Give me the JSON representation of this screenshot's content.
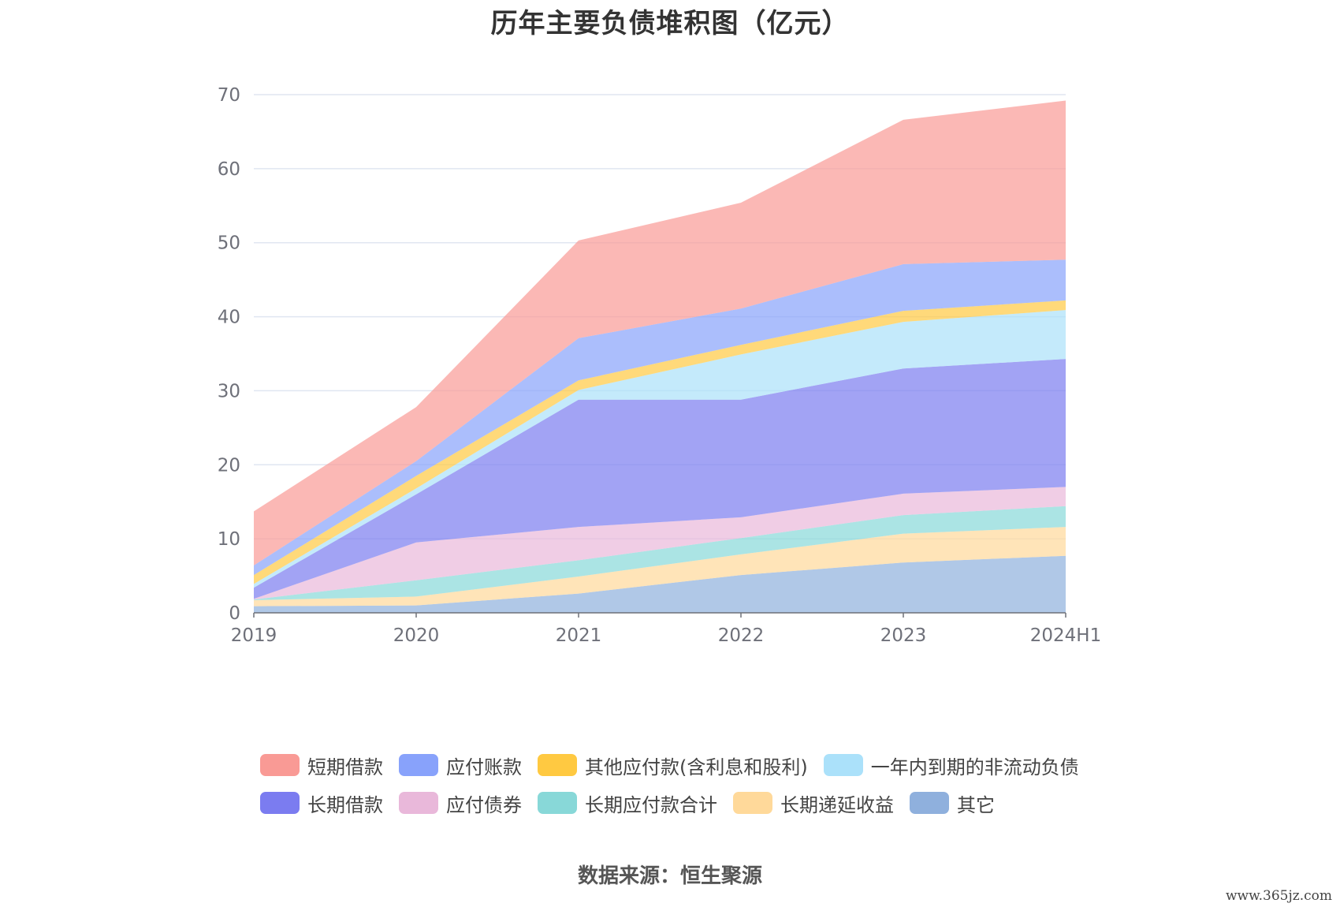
{
  "title": "历年主要负债堆积图（亿元）",
  "source": "数据来源：恒生聚源",
  "watermark": "www.365jz.com",
  "chart_data": {
    "type": "area",
    "stacked": true,
    "categories": [
      "2019",
      "2020",
      "2021",
      "2022",
      "2023",
      "2024H1"
    ],
    "ylim": [
      0,
      70
    ],
    "yticks": [
      0,
      10,
      20,
      30,
      40,
      50,
      60,
      70
    ],
    "grid": true,
    "legend_position": "bottom",
    "series": [
      {
        "name": "其它",
        "color": "#8fb0dd",
        "values": [
          0.9,
          1.0,
          2.6,
          5.1,
          6.8,
          7.7
        ]
      },
      {
        "name": "长期递延收益",
        "color": "#ffd99a",
        "values": [
          0.8,
          1.2,
          2.3,
          2.8,
          3.9,
          3.9
        ]
      },
      {
        "name": "长期应付款合计",
        "color": "#88d8d8",
        "values": [
          0.1,
          2.2,
          2.2,
          2.2,
          2.5,
          2.8
        ]
      },
      {
        "name": "应付债券",
        "color": "#e9b8da",
        "values": [
          0.1,
          5.1,
          4.5,
          2.8,
          2.9,
          2.6
        ]
      },
      {
        "name": "长期借款",
        "color": "#7b7cf0",
        "values": [
          1.5,
          6.5,
          17.2,
          15.9,
          16.9,
          17.3
        ]
      },
      {
        "name": "一年内到期的非流动负债",
        "color": "#abe1fa",
        "values": [
          0.5,
          0.8,
          1.3,
          6.1,
          6.3,
          6.6
        ]
      },
      {
        "name": "其他应付款(含利息和股利)",
        "color": "#ffc941",
        "values": [
          1.2,
          1.7,
          1.3,
          1.3,
          1.5,
          1.3
        ]
      },
      {
        "name": "应付账款",
        "color": "#88a2fb",
        "values": [
          1.3,
          2.0,
          5.7,
          4.9,
          6.3,
          5.5
        ]
      },
      {
        "name": "短期借款",
        "color": "#f99a95",
        "values": [
          7.3,
          7.3,
          13.2,
          14.3,
          19.5,
          21.5
        ]
      }
    ]
  },
  "legend": {
    "row1": [
      "短期借款",
      "应付账款",
      "其他应付款(含利息和股利)",
      "一年内到期的非流动负债"
    ],
    "row2": [
      "长期借款",
      "应付债券",
      "长期应付款合计",
      "长期递延收益",
      "其它"
    ]
  },
  "colors": {
    "短期借款": "#f99a95",
    "应付账款": "#88a2fb",
    "其他应付款(含利息和股利)": "#ffc941",
    "一年内到期的非流动负债": "#abe1fa",
    "长期借款": "#7b7cf0",
    "应付债券": "#e9b8da",
    "长期应付款合计": "#88d8d8",
    "长期递延收益": "#ffd99a",
    "其它": "#8fb0dd"
  }
}
